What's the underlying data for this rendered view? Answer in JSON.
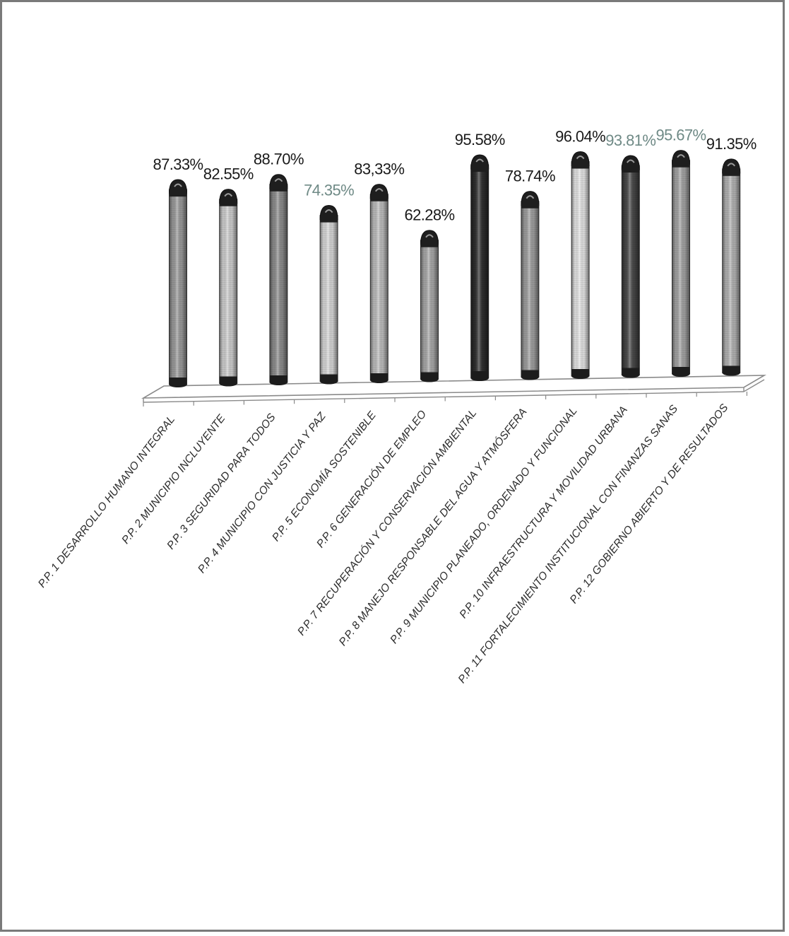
{
  "chart_data": {
    "type": "bar",
    "title": "",
    "xlabel": "",
    "ylabel": "",
    "ylim": [
      0,
      100
    ],
    "grid": false,
    "legend": "none",
    "categories": [
      "P.P. 1 DESARROLLO HUMANO INTEGRAL",
      "P.P. 2 MUNICIPIO INCLUYENTE",
      "P.P. 3 SEGURIDAD PARA TODOS",
      "P.P. 4 MUNICIPIO CON JUSTICIA Y PAZ",
      "P.P. 5 ECONOMÍA SOSTENIBLE",
      "P.P. 6 GENERACIÓN DE EMPLEO",
      "P.P. 7 RECUPERACIÓN Y CONSERVACIÓN AMBIENTAL",
      "P.P. 8 MANEJO RESPONSABLE DEL AGUA Y ATMÓSFERA",
      "P.P. 9 MUNICIPIO PLANEADO, ORDENADO Y FUNCIONAL",
      "P.P. 10 INFRAESTRUCTURA Y MOVILIDAD URBANA",
      "P.P. 11 FORTALECIMIENTO INSTITUCIONAL CON FINANZAS SANAS",
      "P.P. 12 GOBIERNO ABIERTO Y DE RESULTADOS"
    ],
    "values": [
      87.33,
      82.55,
      88.7,
      74.35,
      83.33,
      62.28,
      95.58,
      78.74,
      96.04,
      93.81,
      95.67,
      91.35
    ],
    "value_labels": [
      "87.33%",
      "82.55%",
      "88.70%",
      "74.35%",
      "83,33%",
      "62.28%",
      "95.58%",
      "78.74%",
      "96.04%",
      "93.81%",
      "95.67%",
      "91.35%"
    ],
    "bar_colors": [
      "#9a9a9a",
      "#cfcfcf",
      "#8c8c8c",
      "#d8d8d8",
      "#bdbdbd",
      "#a8a8a8",
      "#2e2e2e",
      "#9e9e9e",
      "#e6e6e6",
      "#474747",
      "#a3a3a3",
      "#b3b3b3"
    ],
    "label_colors": [
      "#1a1a1a",
      "#1a1a1a",
      "#1a1a1a",
      "#6f8a86",
      "#1a1a1a",
      "#1a1a1a",
      "#1a1a1a",
      "#1a1a1a",
      "#1a1a1a",
      "#6f8a86",
      "#6f8a86",
      "#1a1a1a"
    ]
  }
}
